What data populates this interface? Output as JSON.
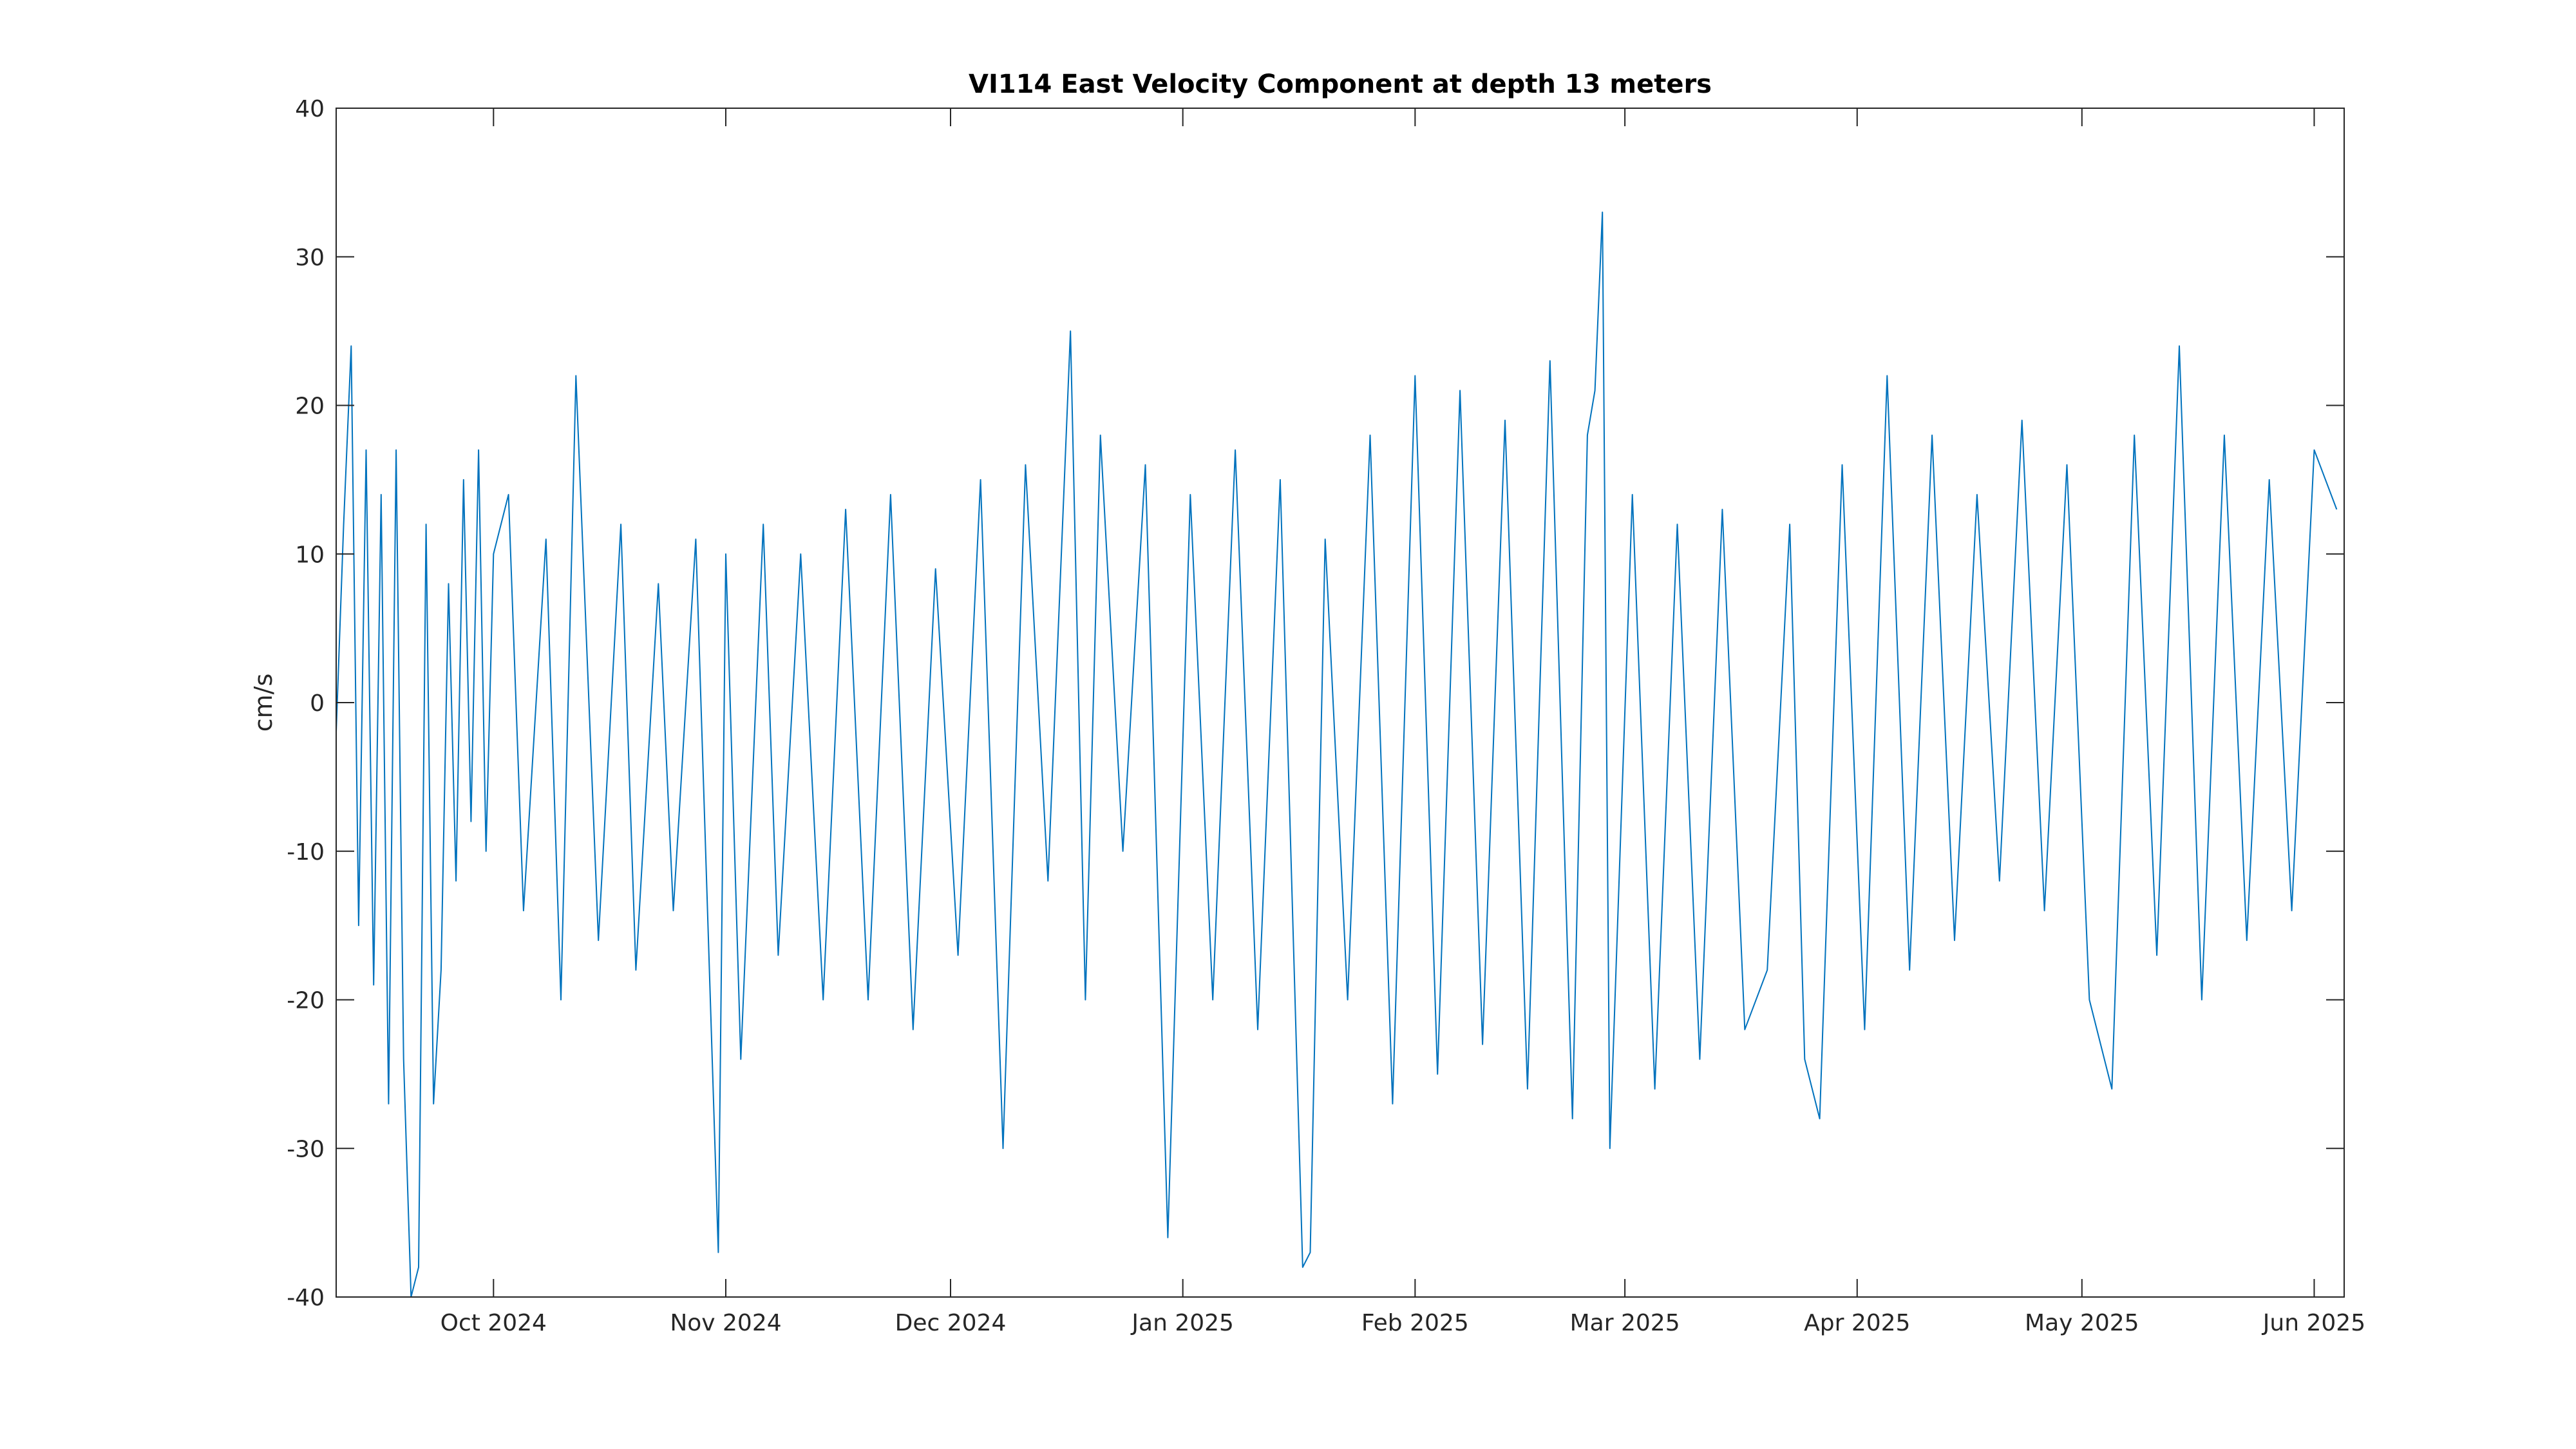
{
  "chart_data": {
    "type": "line",
    "title": "VI114 East Velocity Component at depth 13 meters",
    "xlabel": "",
    "ylabel": "cm/s",
    "xlim": [
      "2024-09-10",
      "2025-06-05"
    ],
    "ylim": [
      -40,
      40
    ],
    "y_ticks": [
      -40,
      -30,
      -20,
      -10,
      0,
      10,
      20,
      30,
      40
    ],
    "y_tick_labels": [
      "-40",
      "-30",
      "-20",
      "-10",
      "0",
      "10",
      "20",
      "30",
      "40"
    ],
    "x_ticks": [
      {
        "date": "2024-10-01",
        "label": "Oct 2024"
      },
      {
        "date": "2024-11-01",
        "label": "Nov 2024"
      },
      {
        "date": "2024-12-01",
        "label": "Dec 2024"
      },
      {
        "date": "2025-01-01",
        "label": "Jan 2025"
      },
      {
        "date": "2025-02-01",
        "label": "Feb 2025"
      },
      {
        "date": "2025-03-01",
        "label": "Mar 2025"
      },
      {
        "date": "2025-04-01",
        "label": "Apr 2025"
      },
      {
        "date": "2025-05-01",
        "label": "May 2025"
      },
      {
        "date": "2025-06-01",
        "label": "Jun 2025"
      }
    ],
    "grid": false,
    "line_color": "#0072bd",
    "series": [
      {
        "x": [
          "2024-09-10",
          "2024-09-11",
          "2024-09-12",
          "2024-09-13",
          "2024-09-14",
          "2024-09-15",
          "2024-09-16",
          "2024-09-17",
          "2024-09-18",
          "2024-09-19",
          "2024-09-20",
          "2024-09-21",
          "2024-09-22",
          "2024-09-23",
          "2024-09-24",
          "2024-09-25",
          "2024-09-26",
          "2024-09-27",
          "2024-09-28",
          "2024-09-29",
          "2024-09-30",
          "2024-10-01",
          "2024-10-03",
          "2024-10-05",
          "2024-10-08",
          "2024-10-10",
          "2024-10-12",
          "2024-10-15",
          "2024-10-18",
          "2024-10-20",
          "2024-10-23",
          "2024-10-25",
          "2024-10-28",
          "2024-10-31",
          "2024-11-01",
          "2024-11-03",
          "2024-11-06",
          "2024-11-08",
          "2024-11-11",
          "2024-11-14",
          "2024-11-17",
          "2024-11-20",
          "2024-11-23",
          "2024-11-26",
          "2024-11-29",
          "2024-12-02",
          "2024-12-05",
          "2024-12-08",
          "2024-12-11",
          "2024-12-14",
          "2024-12-17",
          "2024-12-19",
          "2024-12-21",
          "2024-12-24",
          "2024-12-27",
          "2024-12-30",
          "2025-01-02",
          "2025-01-05",
          "2025-01-08",
          "2025-01-11",
          "2025-01-14",
          "2025-01-17",
          "2025-01-18",
          "2025-01-20",
          "2025-01-23",
          "2025-01-26",
          "2025-01-29",
          "2025-02-01",
          "2025-02-04",
          "2025-02-07",
          "2025-02-10",
          "2025-02-13",
          "2025-02-16",
          "2025-02-19",
          "2025-02-22",
          "2025-02-24",
          "2025-02-25",
          "2025-02-26",
          "2025-02-27",
          "2025-03-02",
          "2025-03-05",
          "2025-03-08",
          "2025-03-11",
          "2025-03-14",
          "2025-03-17",
          "2025-03-20",
          "2025-03-23",
          "2025-03-25",
          "2025-03-27",
          "2025-03-30",
          "2025-04-02",
          "2025-04-05",
          "2025-04-08",
          "2025-04-11",
          "2025-04-14",
          "2025-04-17",
          "2025-04-20",
          "2025-04-23",
          "2025-04-26",
          "2025-04-29",
          "2025-05-02",
          "2025-05-05",
          "2025-05-08",
          "2025-05-11",
          "2025-05-14",
          "2025-05-17",
          "2025-05-20",
          "2025-05-23",
          "2025-05-26",
          "2025-05-29",
          "2025-06-01",
          "2025-06-04"
        ],
        "y": [
          -2,
          12,
          24,
          -15,
          17,
          -19,
          14,
          -27,
          17,
          -24,
          -40,
          -38,
          12,
          -27,
          -18,
          8,
          -12,
          15,
          -8,
          17,
          -10,
          10,
          14,
          -14,
          11,
          -20,
          22,
          -16,
          12,
          -18,
          8,
          -14,
          11,
          -37,
          10,
          -24,
          12,
          -17,
          10,
          -20,
          13,
          -20,
          14,
          -22,
          9,
          -17,
          15,
          -30,
          16,
          -12,
          25,
          -20,
          18,
          -10,
          16,
          -36,
          14,
          -20,
          17,
          -22,
          15,
          -38,
          -37,
          11,
          -20,
          18,
          -27,
          22,
          -25,
          21,
          -23,
          19,
          -26,
          23,
          -28,
          18,
          21,
          33,
          -30,
          14,
          -26,
          12,
          -24,
          13,
          -22,
          -18,
          12,
          -24,
          -28,
          16,
          -22,
          22,
          -18,
          18,
          -16,
          14,
          -12,
          19,
          -14,
          16,
          -20,
          -26,
          18,
          -17,
          24,
          -20,
          18,
          -16,
          15,
          -14,
          17,
          13
        ]
      }
    ]
  }
}
